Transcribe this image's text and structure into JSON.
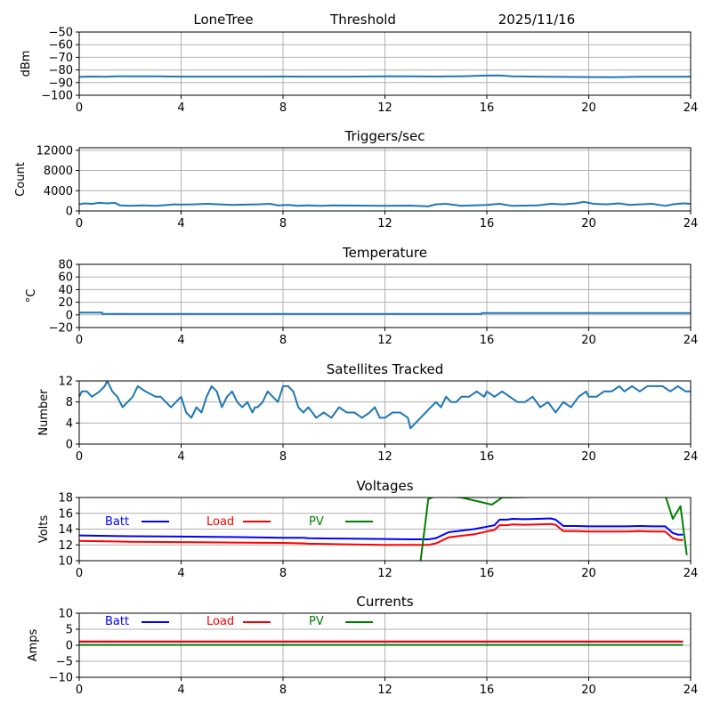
{
  "header": {
    "station": "LoneTree",
    "mode": "Threshold",
    "date": "2025/11/16"
  },
  "chart_data": [
    {
      "id": "threshold",
      "type": "line",
      "title": "",
      "ylabel": "dBm",
      "xlabel": "",
      "xlim": [
        0,
        24
      ],
      "ylim": [
        -100,
        -50
      ],
      "xticks": [
        "0",
        "4",
        "8",
        "12",
        "16",
        "20",
        "24"
      ],
      "yticks": [
        "-50",
        "-60",
        "-70",
        "-80",
        "-90",
        "-100"
      ],
      "ytick_values": [
        -50,
        -60,
        -70,
        -80,
        -90,
        -100
      ],
      "grid": true,
      "series": [
        {
          "name": "Threshold",
          "color": "#1f77b4",
          "x": [
            0,
            0.5,
            1,
            1.5,
            2,
            3,
            4,
            5,
            6,
            7,
            8,
            9,
            10,
            11,
            12,
            13,
            14,
            15,
            15.8,
            16.5,
            17,
            18,
            19,
            20,
            21,
            22,
            23,
            24
          ],
          "y": [
            -85.5,
            -85.2,
            -85.4,
            -85.0,
            -85.0,
            -85.0,
            -85.3,
            -85.3,
            -85.3,
            -85.3,
            -85.2,
            -85.3,
            -85.3,
            -85.2,
            -85.0,
            -85.0,
            -85.2,
            -85.0,
            -84.5,
            -84.3,
            -85.0,
            -85.3,
            -85.5,
            -85.6,
            -85.8,
            -85.4,
            -85.4,
            -85.3
          ]
        }
      ]
    },
    {
      "id": "triggers",
      "type": "line",
      "title": "Triggers/sec",
      "ylabel": "Count",
      "xlabel": "",
      "xlim": [
        0,
        24
      ],
      "ylim": [
        0,
        12500
      ],
      "xticks": [
        "0",
        "4",
        "8",
        "12",
        "16",
        "20",
        "24"
      ],
      "yticks": [
        "0",
        "4000",
        "8000",
        "12000"
      ],
      "ytick_values": [
        0,
        4000,
        8000,
        12000
      ],
      "grid": true,
      "series": [
        {
          "name": "Triggers",
          "color": "#1f77b4",
          "x": [
            0,
            0.2,
            0.5,
            0.8,
            1.1,
            1.4,
            1.6,
            2.0,
            2.5,
            3.0,
            3.5,
            3.7,
            4.0,
            4.5,
            5.0,
            5.5,
            6.0,
            6.5,
            7.0,
            7.5,
            7.8,
            8.2,
            8.6,
            9.0,
            9.5,
            10.0,
            11.0,
            12.0,
            13.0,
            13.7,
            14.0,
            14.4,
            15.0,
            15.5,
            16.0,
            16.5,
            17.0,
            18.0,
            18.5,
            19.0,
            19.5,
            19.8,
            20.2,
            20.7,
            21.2,
            21.6,
            22.0,
            22.5,
            23.0,
            23.3,
            23.7,
            24.0
          ],
          "y": [
            1300,
            1500,
            1400,
            1600,
            1500,
            1600,
            1100,
            1000,
            1100,
            1000,
            1200,
            1300,
            1250,
            1300,
            1400,
            1300,
            1200,
            1250,
            1300,
            1400,
            1100,
            1200,
            1000,
            1100,
            1000,
            1100,
            1050,
            1000,
            1050,
            900,
            1300,
            1400,
            1000,
            1100,
            1200,
            1400,
            1000,
            1100,
            1400,
            1300,
            1500,
            1800,
            1400,
            1300,
            1500,
            1200,
            1300,
            1400,
            1000,
            1300,
            1500,
            1400
          ]
        }
      ]
    },
    {
      "id": "temperature",
      "type": "line",
      "title": "Temperature",
      "ylabel": "°C",
      "xlabel": "",
      "xlim": [
        0,
        24
      ],
      "ylim": [
        -20,
        80
      ],
      "xticks": [
        "0",
        "4",
        "8",
        "12",
        "16",
        "20",
        "24"
      ],
      "yticks": [
        "80",
        "60",
        "40",
        "20",
        "0",
        "-20"
      ],
      "ytick_values": [
        80,
        60,
        40,
        20,
        0,
        -20
      ],
      "grid": true,
      "series": [
        {
          "name": "Temperature",
          "color": "#1f77b4",
          "x": [
            0,
            0.9,
            0.9,
            15.8,
            15.8,
            24
          ],
          "y": [
            3.5,
            3.5,
            1.5,
            1.5,
            3.0,
            3.0
          ]
        }
      ]
    },
    {
      "id": "satellites",
      "type": "line",
      "title": "Satellites Tracked",
      "ylabel": "Number",
      "xlabel": "",
      "xlim": [
        0,
        24
      ],
      "ylim": [
        0,
        12
      ],
      "xticks": [
        "0",
        "4",
        "8",
        "12",
        "16",
        "20",
        "24"
      ],
      "yticks": [
        "0",
        "4",
        "8",
        "12"
      ],
      "ytick_values": [
        0,
        4,
        8,
        12
      ],
      "grid": true,
      "series": [
        {
          "name": "Satellites",
          "color": "#1f77b4",
          "x": [
            0,
            0.1,
            0.3,
            0.5,
            0.8,
            1.0,
            1.1,
            1.3,
            1.5,
            1.7,
            1.9,
            2.1,
            2.3,
            2.6,
            3.0,
            3.2,
            3.4,
            3.6,
            3.8,
            4.0,
            4.2,
            4.4,
            4.6,
            4.8,
            5.0,
            5.2,
            5.4,
            5.6,
            5.8,
            6.0,
            6.2,
            6.4,
            6.6,
            6.8,
            6.9,
            7.0,
            7.2,
            7.4,
            7.6,
            7.8,
            8.0,
            8.2,
            8.4,
            8.6,
            8.8,
            9.0,
            9.3,
            9.6,
            9.9,
            10.2,
            10.5,
            10.8,
            11.1,
            11.4,
            11.6,
            11.8,
            12.0,
            12.3,
            12.6,
            12.9,
            13.0,
            13.2,
            13.4,
            13.6,
            13.8,
            14.0,
            14.2,
            14.4,
            14.6,
            14.8,
            15.0,
            15.3,
            15.6,
            15.9,
            16.0,
            16.3,
            16.6,
            16.9,
            17.2,
            17.5,
            17.8,
            18.1,
            18.4,
            18.7,
            19.0,
            19.3,
            19.6,
            19.9,
            20.0,
            20.3,
            20.6,
            20.9,
            21.2,
            21.4,
            21.7,
            22.0,
            22.3,
            22.6,
            22.9,
            23.2,
            23.5,
            23.8,
            24.0
          ],
          "y": [
            9,
            10,
            10,
            9,
            10,
            11,
            12,
            10,
            9,
            7,
            8,
            9,
            11,
            10,
            9,
            9,
            8,
            7,
            8,
            9,
            6,
            5,
            7,
            6,
            9,
            11,
            10,
            7,
            9,
            10,
            8,
            7,
            8,
            6,
            7,
            7,
            8,
            10,
            9,
            8,
            11,
            11,
            10,
            7,
            6,
            7,
            5,
            6,
            5,
            7,
            6,
            6,
            5,
            6,
            7,
            5,
            5,
            6,
            6,
            5,
            3,
            4,
            5,
            6,
            7,
            8,
            7,
            9,
            8,
            8,
            9,
            9,
            10,
            9,
            10,
            9,
            10,
            9,
            8,
            8,
            9,
            7,
            8,
            6,
            8,
            7,
            9,
            10,
            9,
            9,
            10,
            10,
            11,
            10,
            11,
            10,
            11,
            11,
            11,
            10,
            11,
            10,
            10
          ]
        }
      ]
    },
    {
      "id": "voltages",
      "type": "line",
      "title": "Voltages",
      "ylabel": "Volts",
      "xlabel": "",
      "xlim": [
        0,
        24
      ],
      "ylim": [
        10,
        18
      ],
      "xticks": [
        "0",
        "4",
        "8",
        "12",
        "16",
        "20",
        "24"
      ],
      "yticks": [
        "10",
        "12",
        "14",
        "16",
        "18"
      ],
      "ytick_values": [
        10,
        12,
        14,
        16,
        18
      ],
      "grid": true,
      "legend": {
        "placement": "top-left",
        "entries": [
          "Batt",
          "Load",
          "PV"
        ]
      },
      "series": [
        {
          "name": "Batt",
          "color": "#0000ff",
          "x": [
            0,
            2,
            4,
            6,
            8,
            8.8,
            9,
            10,
            12,
            13,
            13.7,
            14.0,
            14.5,
            15.0,
            15.5,
            16.0,
            16.3,
            16.5,
            16.8,
            17.0,
            17.5,
            18.0,
            18.5,
            18.7,
            19.0,
            19.5,
            20.0,
            20.5,
            21.0,
            21.5,
            22.0,
            22.5,
            23.0,
            23.3,
            23.5,
            23.7
          ],
          "y": [
            13.2,
            13.1,
            13.05,
            13.0,
            12.9,
            12.9,
            12.85,
            12.8,
            12.75,
            12.7,
            12.7,
            12.85,
            13.6,
            13.8,
            14.0,
            14.3,
            14.5,
            15.2,
            15.2,
            15.3,
            15.25,
            15.3,
            15.35,
            15.2,
            14.4,
            14.4,
            14.35,
            14.35,
            14.35,
            14.35,
            14.4,
            14.35,
            14.35,
            13.5,
            13.3,
            13.3
          ]
        },
        {
          "name": "Load",
          "color": "#ff0000",
          "x": [
            0,
            2,
            4,
            6,
            8,
            8.8,
            9,
            10,
            12,
            13,
            13.7,
            14.0,
            14.5,
            15.0,
            15.5,
            16.0,
            16.3,
            16.5,
            16.8,
            17.0,
            17.5,
            18.0,
            18.5,
            18.7,
            19.0,
            19.5,
            20.0,
            20.5,
            21.0,
            21.5,
            22.0,
            22.5,
            23.0,
            23.3,
            23.5,
            23.7
          ],
          "y": [
            12.5,
            12.4,
            12.35,
            12.3,
            12.25,
            12.2,
            12.15,
            12.1,
            12.0,
            12.0,
            12.0,
            12.2,
            12.95,
            13.15,
            13.35,
            13.7,
            13.9,
            14.5,
            14.5,
            14.6,
            14.55,
            14.6,
            14.65,
            14.55,
            13.75,
            13.75,
            13.7,
            13.7,
            13.7,
            13.7,
            13.75,
            13.7,
            13.7,
            12.85,
            12.65,
            12.6
          ]
        },
        {
          "name": "PV",
          "color": "#008000",
          "x": [
            13.4,
            13.7,
            14.0,
            15.0,
            16.2,
            16.6,
            23.0,
            23.3,
            23.6,
            23.85
          ],
          "y": [
            10.0,
            17.8,
            18.2,
            18.0,
            17.1,
            18.0,
            18.3,
            15.3,
            16.9,
            10.7
          ]
        }
      ]
    },
    {
      "id": "currents",
      "type": "line",
      "title": "Currents",
      "ylabel": "Amps",
      "xlabel": "",
      "xlim": [
        0,
        24
      ],
      "ylim": [
        -10,
        10
      ],
      "xticks": [
        "0",
        "4",
        "8",
        "12",
        "16",
        "20",
        "24"
      ],
      "yticks": [
        "10",
        "5",
        "0",
        "-5",
        "-10"
      ],
      "ytick_values": [
        10,
        5,
        0,
        -5,
        -10
      ],
      "grid": true,
      "legend": {
        "placement": "top-left",
        "entries": [
          "Batt",
          "Load",
          "PV"
        ]
      },
      "series": [
        {
          "name": "Batt",
          "color": "#0000ff",
          "x": [
            0,
            23.7
          ],
          "y": [
            1.1,
            1.1
          ]
        },
        {
          "name": "Load",
          "color": "#ff0000",
          "x": [
            0,
            23.7
          ],
          "y": [
            1.2,
            1.2
          ]
        },
        {
          "name": "PV",
          "color": "#008000",
          "x": [
            0,
            23.7
          ],
          "y": [
            0.1,
            0.1
          ]
        }
      ]
    }
  ]
}
